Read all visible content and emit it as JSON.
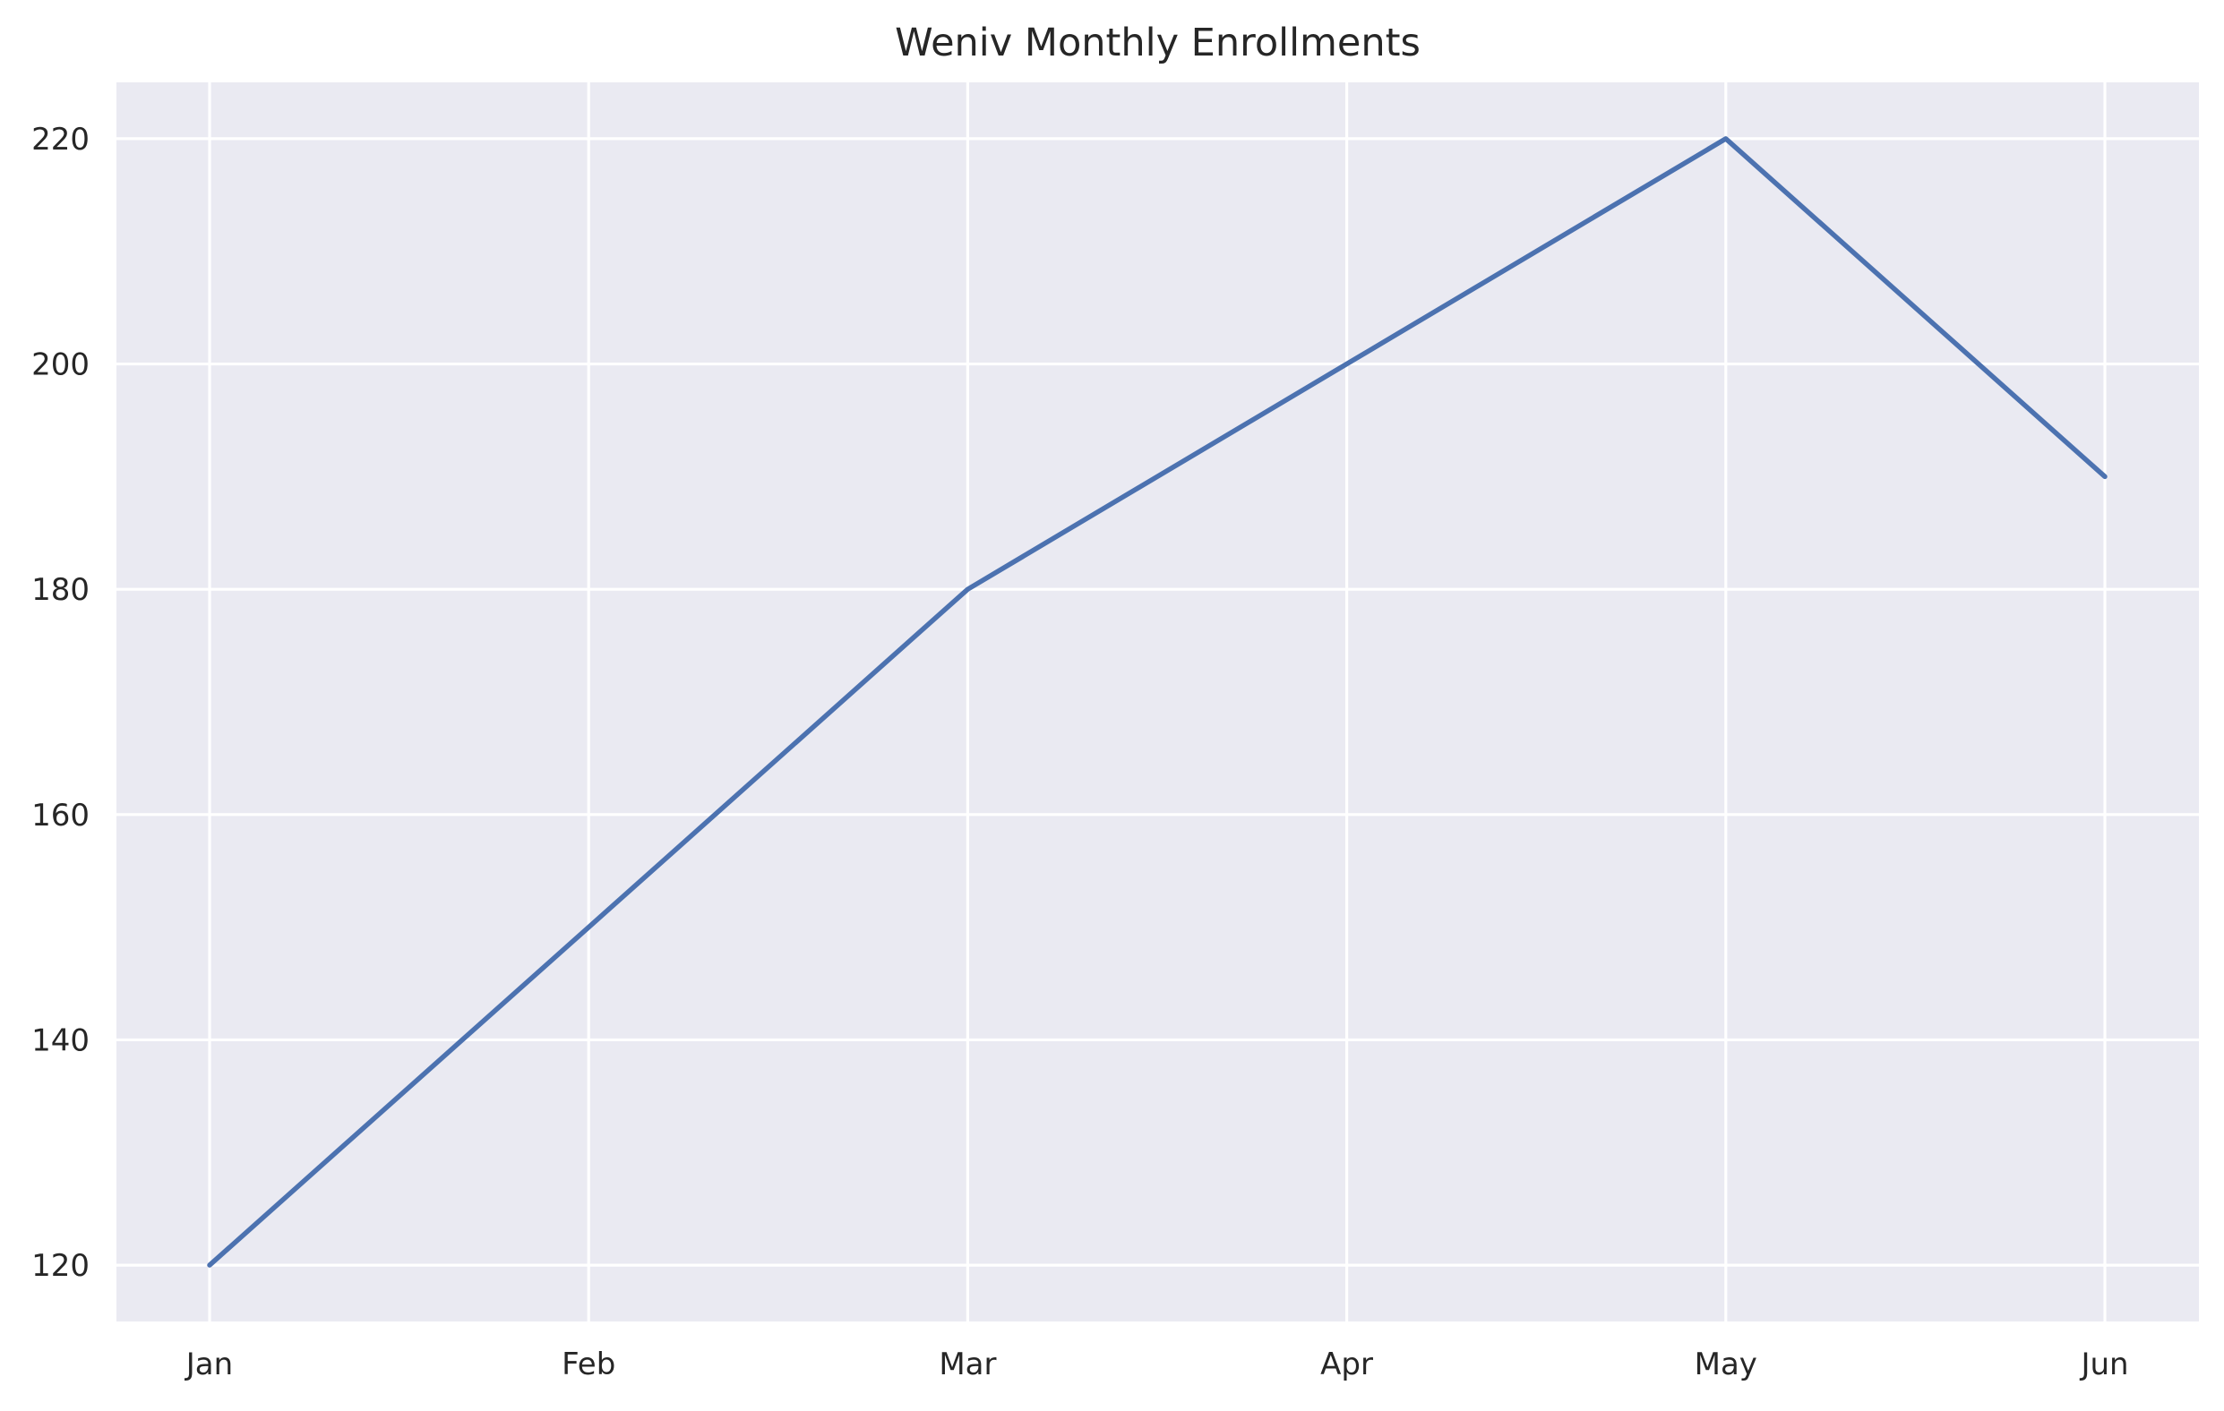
{
  "chart_data": {
    "type": "line",
    "title": "Weniv Monthly Enrollments",
    "xlabel": "",
    "ylabel": "",
    "categories": [
      "Jan",
      "Feb",
      "Mar",
      "Apr",
      "May",
      "Jun"
    ],
    "series": [
      {
        "values": [
          120,
          150,
          180,
          200,
          220,
          190
        ],
        "color": "#4c72b0"
      }
    ],
    "ylim": [
      115,
      225
    ],
    "yticks": [
      120,
      140,
      160,
      180,
      200,
      220
    ],
    "grid": true,
    "legend": "none",
    "colors": {
      "plot_background": "#eaeaf2",
      "grid": "#ffffff",
      "text": "#262626"
    }
  }
}
